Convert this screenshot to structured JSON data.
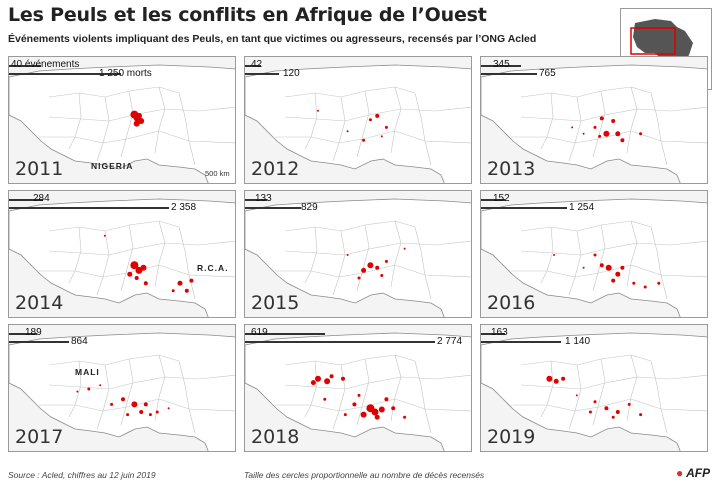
{
  "title": "Les Peuls et les conflits en Afrique de l’Ouest",
  "subtitle": "Événements violents impliquant des Peuls, en tant que victimes ou agresseurs, recensés par l’ONG Acled",
  "legend": {
    "events_label": "événements",
    "deaths_label": "morts"
  },
  "labels": {
    "nigeria": "NIGERIA",
    "rca": "R.C.A.",
    "mali": "MALI",
    "scale": "500 km"
  },
  "footer": {
    "source": "Source : Acled, chiffres au 12 juin 2019",
    "note": "Taille des cercles proportionnelle au nombre de décès recensés",
    "logo": "AFP"
  },
  "colors": {
    "events": "#e00000",
    "land": "#ffffff",
    "sea": "#f4f4f4",
    "bars": "#333333"
  },
  "panels": [
    {
      "year": "2011",
      "events": 40,
      "events_text": "40 événements",
      "deaths": 1250,
      "deaths_text": "1 250 morts",
      "dots": [
        [
          0.55,
          0.45,
          4
        ],
        [
          0.56,
          0.52,
          3
        ],
        [
          0.57,
          0.46,
          3
        ],
        [
          0.56,
          0.48,
          3
        ],
        [
          0.58,
          0.5,
          3
        ]
      ]
    },
    {
      "year": "2012",
      "events": 42,
      "events_text": "42",
      "deaths": 120,
      "deaths_text": "120",
      "dots": [
        [
          0.58,
          0.46,
          2
        ],
        [
          0.62,
          0.55,
          1.5
        ],
        [
          0.55,
          0.49,
          1.5
        ],
        [
          0.32,
          0.42,
          1
        ],
        [
          0.52,
          0.65,
          1.5
        ],
        [
          0.6,
          0.62,
          1
        ],
        [
          0.45,
          0.58,
          1
        ]
      ]
    },
    {
      "year": "2013",
      "events": 345,
      "events_text": "345",
      "deaths": 765,
      "deaths_text": "765",
      "dots": [
        [
          0.55,
          0.6,
          3
        ],
        [
          0.6,
          0.6,
          2.5
        ],
        [
          0.62,
          0.65,
          2
        ],
        [
          0.58,
          0.5,
          2
        ],
        [
          0.5,
          0.55,
          1.5
        ],
        [
          0.53,
          0.48,
          2
        ],
        [
          0.7,
          0.6,
          1.5
        ],
        [
          0.52,
          0.62,
          1.5
        ],
        [
          0.45,
          0.6,
          1
        ],
        [
          0.4,
          0.55,
          1
        ]
      ]
    },
    {
      "year": "2014",
      "events": 284,
      "events_text": "284",
      "deaths": 2358,
      "deaths_text": "2 358",
      "dots": [
        [
          0.55,
          0.58,
          4
        ],
        [
          0.57,
          0.62,
          3.5
        ],
        [
          0.59,
          0.6,
          3
        ],
        [
          0.53,
          0.65,
          2.5
        ],
        [
          0.6,
          0.72,
          2
        ],
        [
          0.75,
          0.72,
          2.5
        ],
        [
          0.78,
          0.78,
          2
        ],
        [
          0.8,
          0.7,
          2
        ],
        [
          0.72,
          0.78,
          1.5
        ],
        [
          0.42,
          0.35,
          1
        ],
        [
          0.56,
          0.68,
          2
        ]
      ]
    },
    {
      "year": "2015",
      "events": 133,
      "events_text": "133",
      "deaths": 829,
      "deaths_text": "829",
      "dots": [
        [
          0.55,
          0.58,
          3
        ],
        [
          0.52,
          0.62,
          2.5
        ],
        [
          0.58,
          0.6,
          2
        ],
        [
          0.6,
          0.66,
          1.5
        ],
        [
          0.5,
          0.68,
          1.5
        ],
        [
          0.62,
          0.55,
          1.5
        ],
        [
          0.7,
          0.45,
          1
        ],
        [
          0.45,
          0.5,
          1
        ]
      ]
    },
    {
      "year": "2016",
      "events": 152,
      "events_text": "152",
      "deaths": 1254,
      "deaths_text": "1 254",
      "dots": [
        [
          0.56,
          0.6,
          3
        ],
        [
          0.6,
          0.65,
          2.5
        ],
        [
          0.53,
          0.58,
          2
        ],
        [
          0.58,
          0.7,
          2
        ],
        [
          0.62,
          0.6,
          2
        ],
        [
          0.67,
          0.72,
          1.5
        ],
        [
          0.72,
          0.75,
          1.5
        ],
        [
          0.78,
          0.72,
          1.5
        ],
        [
          0.5,
          0.5,
          1.5
        ],
        [
          0.32,
          0.5,
          1
        ],
        [
          0.45,
          0.6,
          1
        ]
      ]
    },
    {
      "year": "2017",
      "events": 189,
      "events_text": "189",
      "deaths": 864,
      "deaths_text": "864",
      "dots": [
        [
          0.55,
          0.62,
          3
        ],
        [
          0.5,
          0.58,
          2
        ],
        [
          0.6,
          0.62,
          2
        ],
        [
          0.58,
          0.68,
          2
        ],
        [
          0.45,
          0.62,
          1.5
        ],
        [
          0.65,
          0.68,
          1.5
        ],
        [
          0.35,
          0.5,
          1.5
        ],
        [
          0.4,
          0.47,
          1
        ],
        [
          0.3,
          0.52,
          1
        ],
        [
          0.52,
          0.7,
          1.5
        ],
        [
          0.62,
          0.7,
          1.5
        ],
        [
          0.7,
          0.65,
          1
        ]
      ]
    },
    {
      "year": "2018",
      "events": 619,
      "events_text": "619",
      "deaths": 2774,
      "deaths_text": "2 774",
      "dots": [
        [
          0.32,
          0.42,
          3
        ],
        [
          0.36,
          0.44,
          3
        ],
        [
          0.3,
          0.45,
          2.5
        ],
        [
          0.38,
          0.4,
          2
        ],
        [
          0.43,
          0.42,
          2
        ],
        [
          0.55,
          0.65,
          4
        ],
        [
          0.57,
          0.68,
          3.5
        ],
        [
          0.6,
          0.66,
          3
        ],
        [
          0.52,
          0.7,
          3
        ],
        [
          0.58,
          0.72,
          2.5
        ],
        [
          0.48,
          0.62,
          2
        ],
        [
          0.65,
          0.65,
          2
        ],
        [
          0.7,
          0.72,
          1.5
        ],
        [
          0.44,
          0.7,
          1.5
        ],
        [
          0.35,
          0.58,
          1.5
        ],
        [
          0.5,
          0.55,
          1.5
        ],
        [
          0.62,
          0.58,
          2
        ]
      ]
    },
    {
      "year": "2019",
      "events": 163,
      "events_text": "163",
      "deaths": 1140,
      "deaths_text": "1 140",
      "dots": [
        [
          0.3,
          0.42,
          3
        ],
        [
          0.33,
          0.44,
          2.5
        ],
        [
          0.36,
          0.42,
          2
        ],
        [
          0.55,
          0.65,
          2
        ],
        [
          0.6,
          0.68,
          2
        ],
        [
          0.5,
          0.6,
          1.5
        ],
        [
          0.65,
          0.62,
          1.5
        ],
        [
          0.48,
          0.68,
          1.5
        ],
        [
          0.58,
          0.72,
          1.5
        ],
        [
          0.42,
          0.55,
          1
        ],
        [
          0.7,
          0.7,
          1.5
        ]
      ]
    }
  ]
}
